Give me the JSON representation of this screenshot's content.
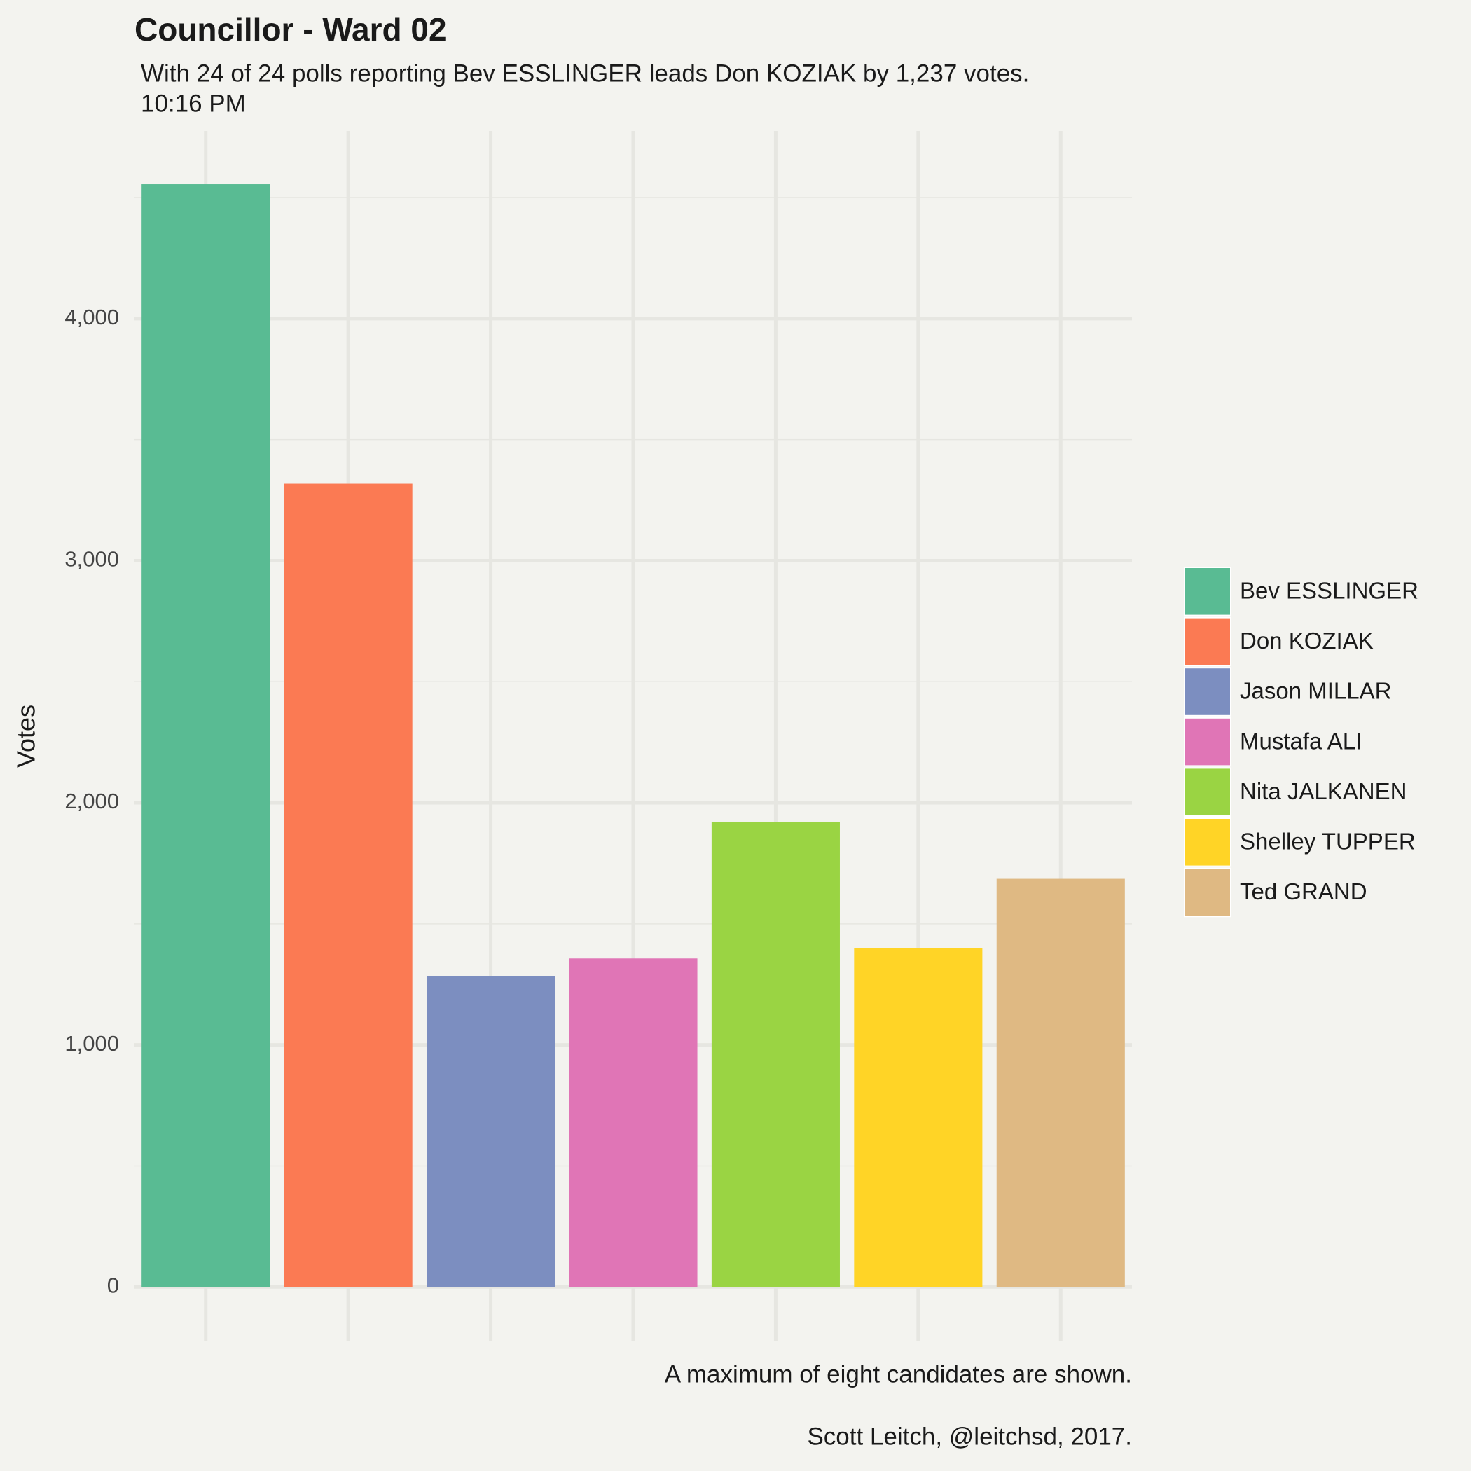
{
  "chart_data": {
    "type": "bar",
    "title": "Councillor  - Ward 02",
    "subtitle": [
      "With 24 of 24 polls reporting Bev ESSLINGER leads Don KOZIAK by 1,237 votes.",
      "10:16 PM"
    ],
    "y_label": "Votes",
    "caption": [
      "A maximum of eight candidates are shown.",
      "Scott Leitch, @leitchsd, 2017."
    ],
    "categories": [
      null,
      null,
      null,
      null,
      null,
      null,
      null
    ],
    "values": [
      4555,
      3318,
      1283,
      1357,
      1922,
      1399,
      1686
    ],
    "colors": [
      "#59bb93",
      "#fb7a53",
      "#7c8ec0",
      "#e075b6",
      "#9ad443",
      "#ffd426",
      "#dfb983"
    ],
    "legend": [
      "Bev ESSLINGER",
      "Don KOZIAK",
      "Jason MILLAR",
      "Mustafa ALI",
      "Nita JALKANEN",
      "Shelley TUPPER",
      "Ted GRAND"
    ],
    "ylim": [
      -225,
      4775
    ],
    "yticks": [
      0,
      {
        "value": 1000,
        "label": "1,000"
      },
      {
        "value": 2000,
        "label": "2,000"
      },
      {
        "value": 3000,
        "label": "3,000"
      },
      {
        "value": 4000,
        "label": "4,000"
      }
    ],
    "minor_yticks": [
      500,
      1500,
      2500,
      3500,
      4500
    ],
    "grid": true,
    "legend_position": "right"
  }
}
